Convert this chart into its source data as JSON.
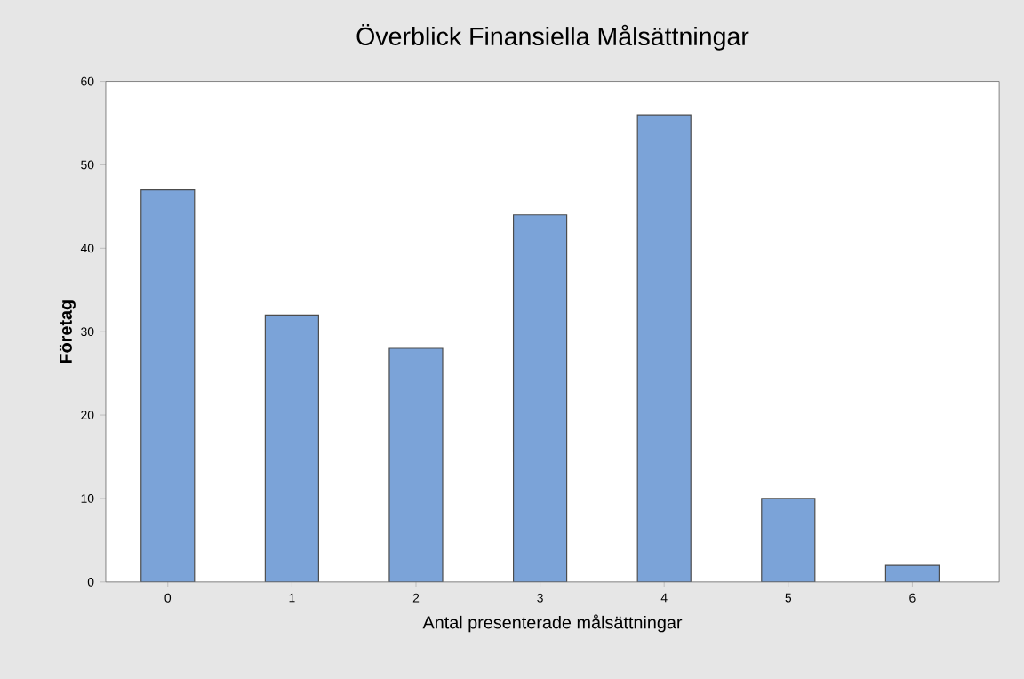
{
  "chart_data": {
    "type": "bar",
    "title": "Överblick Finansiella Målsättningar",
    "xlabel": "Antal presenterade målsättningar",
    "ylabel": "Företag",
    "categories": [
      "0",
      "1",
      "2",
      "3",
      "4",
      "5",
      "6"
    ],
    "values": [
      47,
      32,
      28,
      44,
      56,
      10,
      2
    ],
    "color": "#7ba3d8",
    "ylim": [
      0,
      60
    ],
    "yticks": [
      0,
      10,
      20,
      30,
      40,
      50,
      60
    ],
    "grid": false
  }
}
